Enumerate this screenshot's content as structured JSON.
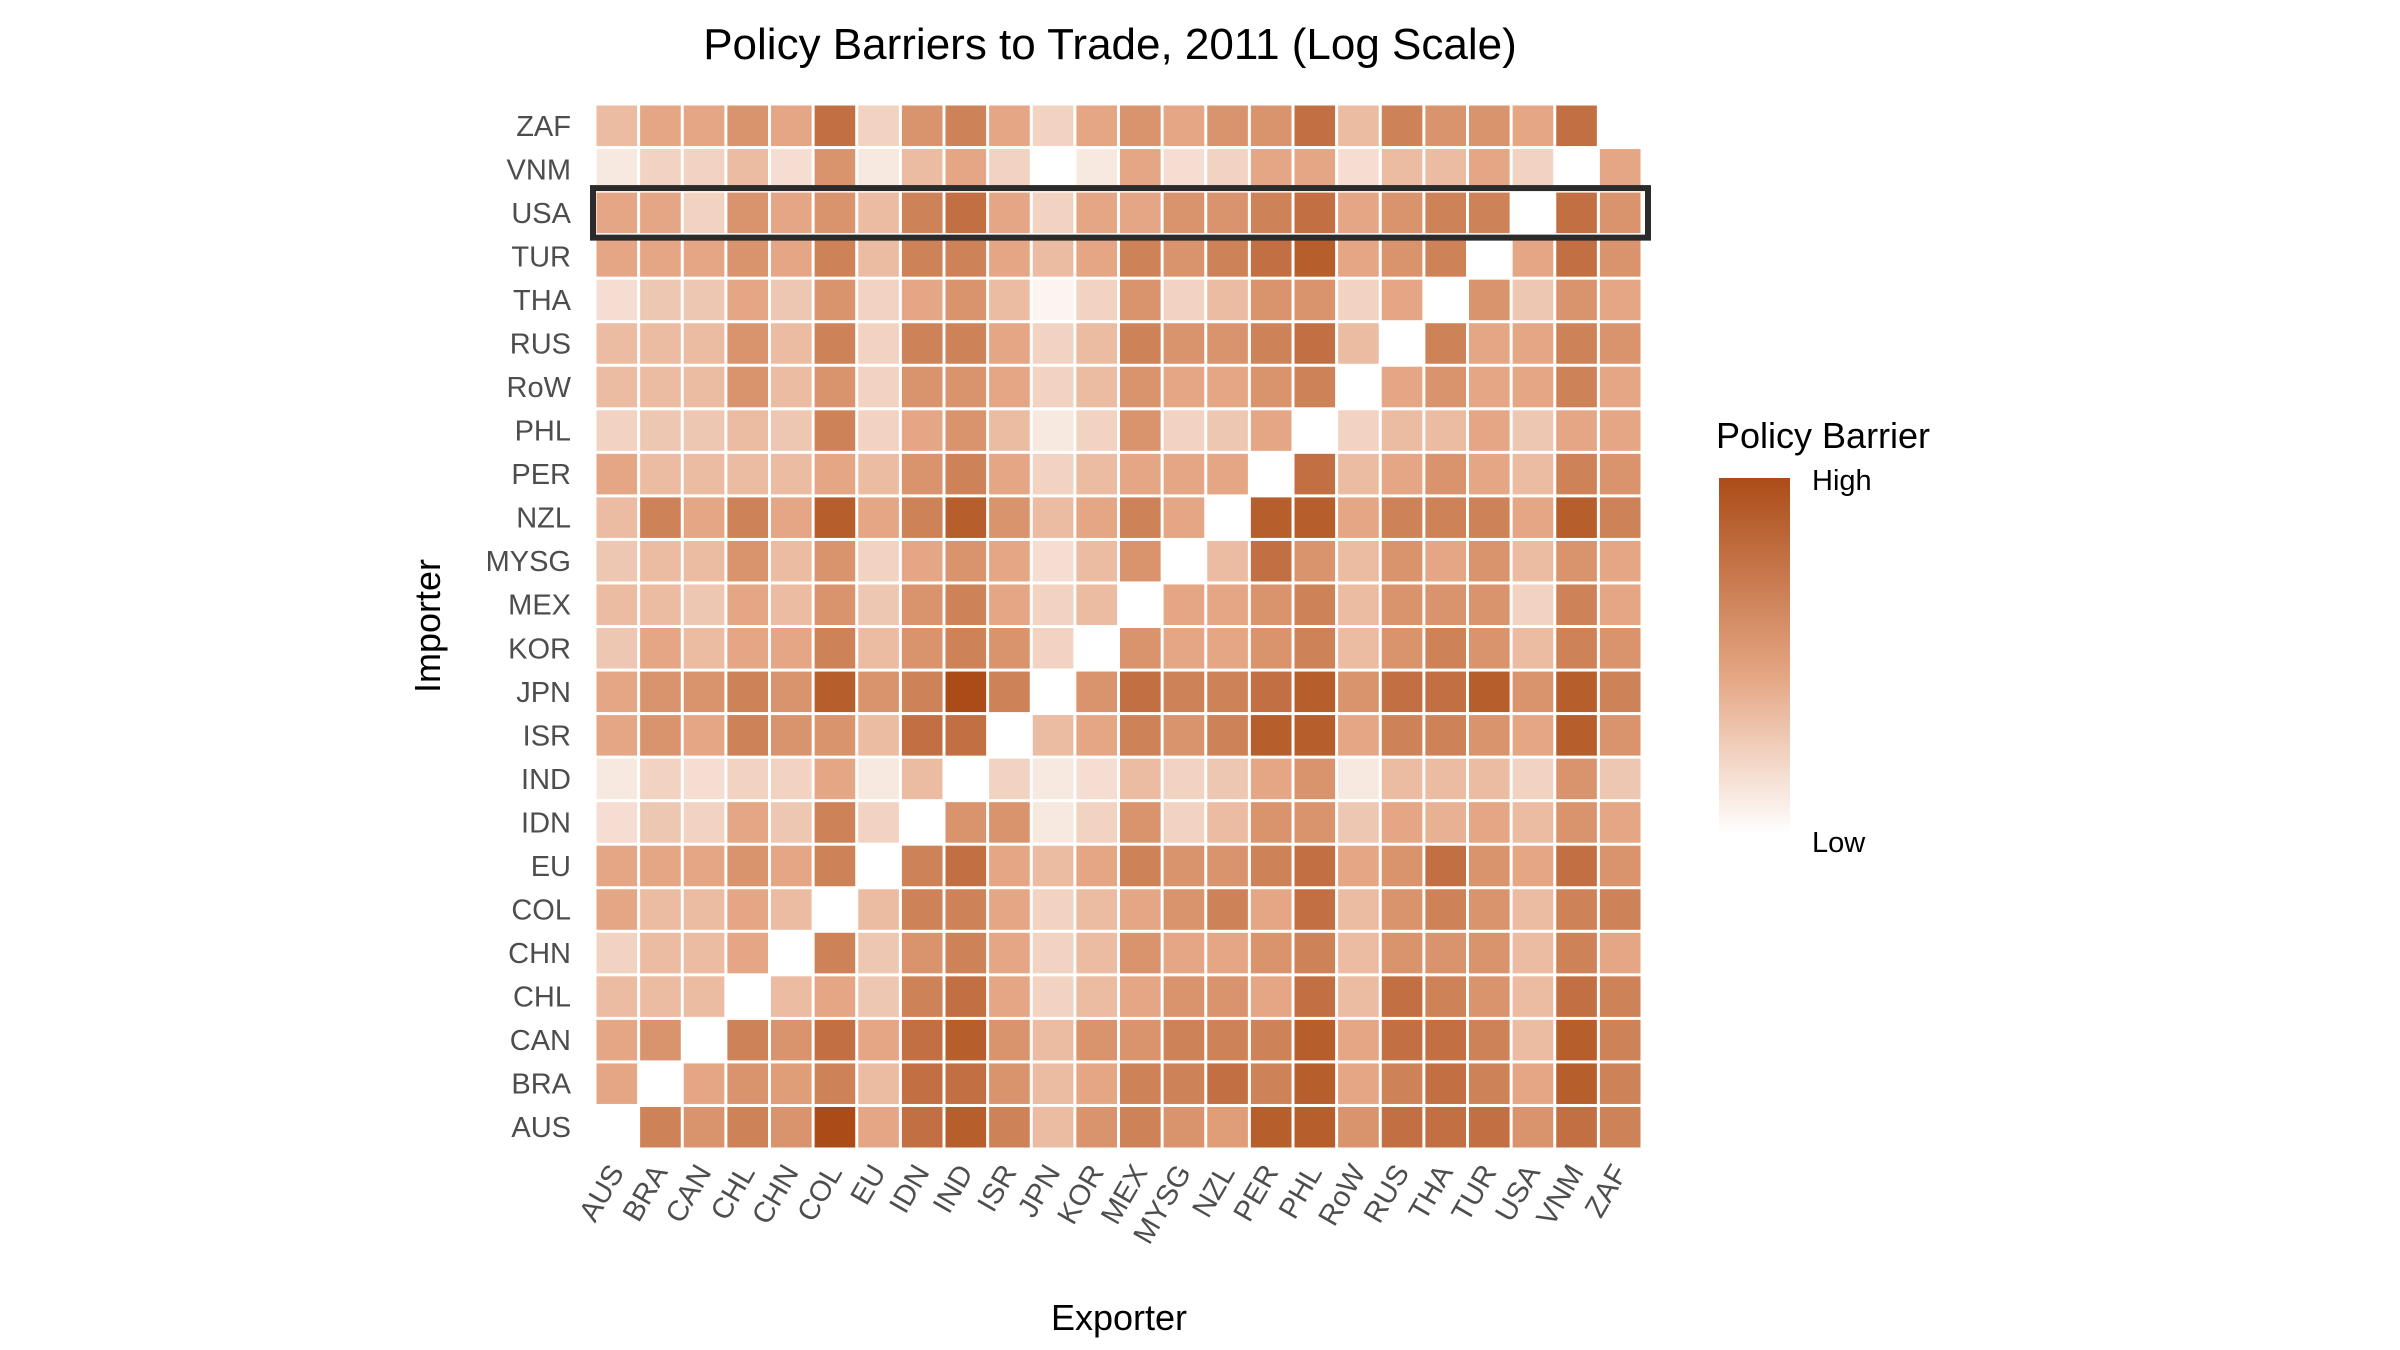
{
  "chart_data": {
    "type": "heatmap",
    "title": "Policy Barriers to Trade, 2011 (Log Scale)",
    "xlabel": "Exporter",
    "ylabel": "Importer",
    "value_scale": "relative intensity 0 (low) to 9 (high), log scale; null = no data",
    "x": [
      "AUS",
      "BRA",
      "CAN",
      "CHL",
      "CHN",
      "COL",
      "EU",
      "IDN",
      "IND",
      "ISR",
      "JPN",
      "KOR",
      "MEX",
      "MYSG",
      "NZL",
      "PER",
      "PHL",
      "RoW",
      "RUS",
      "THA",
      "TUR",
      "USA",
      "VNM",
      "ZAF"
    ],
    "y": [
      "ZAF",
      "VNM",
      "USA",
      "TUR",
      "THA",
      "RUS",
      "RoW",
      "PHL",
      "PER",
      "NZL",
      "MYSG",
      "MEX",
      "KOR",
      "JPN",
      "ISR",
      "IND",
      "IDN",
      "EU",
      "COL",
      "CHN",
      "CHL",
      "CAN",
      "BRA",
      "AUS"
    ],
    "values": [
      [
        3,
        4,
        4,
        5,
        4,
        7,
        2,
        5,
        6,
        4,
        2,
        4,
        5,
        4,
        5,
        5,
        7,
        3,
        6,
        5,
        5,
        4,
        7,
        null
      ],
      [
        1,
        2,
        2,
        3,
        1.5,
        5,
        1,
        3,
        4,
        2,
        0,
        1,
        4,
        1.5,
        2,
        4,
        4,
        1.5,
        3,
        3,
        4,
        2,
        null,
        4
      ],
      [
        4,
        4,
        2,
        5,
        4,
        5,
        3,
        6,
        7,
        4,
        2,
        4,
        4,
        5,
        5,
        6,
        7,
        4,
        5,
        6,
        6,
        null,
        7,
        5
      ],
      [
        4,
        4,
        4,
        5,
        4,
        6,
        3,
        6,
        6,
        4,
        3,
        4,
        6,
        5,
        6,
        7,
        8,
        4,
        5,
        6,
        null,
        4,
        7,
        5
      ],
      [
        1.5,
        2.5,
        2.5,
        4,
        2.5,
        5,
        2,
        4,
        5,
        3,
        0.5,
        2,
        5,
        2,
        3,
        5,
        5,
        2,
        4,
        null,
        5,
        2.5,
        5,
        4
      ],
      [
        3,
        3,
        3,
        5,
        3,
        6,
        2,
        6,
        6,
        4,
        2,
        3,
        6,
        5,
        5,
        6,
        7,
        3,
        null,
        6,
        4,
        4,
        6,
        5
      ],
      [
        3,
        3,
        3,
        5,
        3,
        5,
        2,
        5,
        5,
        4,
        2,
        3,
        5,
        4,
        4,
        5,
        6,
        null,
        4,
        5,
        4,
        4,
        6,
        4
      ],
      [
        2,
        2.5,
        2.5,
        3,
        2.5,
        6,
        2,
        4,
        5,
        3,
        1,
        2,
        5,
        2,
        2.5,
        4,
        null,
        2,
        3,
        3,
        4,
        2.5,
        4,
        4
      ],
      [
        4,
        3,
        3,
        3,
        3,
        4,
        3,
        5,
        6,
        4,
        2,
        3,
        4,
        4,
        4,
        null,
        7,
        3,
        4,
        5,
        4,
        3,
        6,
        5
      ],
      [
        3,
        6,
        4,
        6,
        4,
        8,
        4,
        6,
        8,
        5,
        3,
        4,
        6,
        4,
        null,
        8,
        8,
        4,
        6,
        6,
        6,
        4,
        8,
        6
      ],
      [
        2.5,
        3,
        3,
        5,
        3,
        5,
        2,
        4,
        5,
        4,
        1.5,
        3,
        5,
        null,
        3,
        7,
        5,
        3,
        5,
        4,
        5,
        3,
        5,
        4
      ],
      [
        3,
        3,
        2.5,
        4,
        3,
        5,
        2.5,
        5,
        6,
        4,
        2,
        3,
        null,
        4,
        4,
        5,
        6,
        3,
        5,
        5,
        5,
        2,
        6,
        4
      ],
      [
        2.5,
        4,
        3,
        4,
        4,
        6,
        3,
        5,
        6,
        5,
        2,
        null,
        5,
        4,
        4,
        5,
        6,
        3,
        5,
        6,
        5,
        3,
        6,
        5
      ],
      [
        4,
        5,
        5,
        6,
        5,
        8,
        5,
        6,
        9,
        6,
        null,
        5,
        7,
        6,
        6,
        7,
        8,
        5,
        7,
        7,
        8,
        5,
        8,
        6
      ],
      [
        4,
        5,
        4,
        6,
        5,
        5,
        3,
        7,
        7,
        null,
        3,
        4,
        6,
        5,
        6,
        8,
        8,
        4,
        6,
        6,
        5,
        4,
        8,
        5
      ],
      [
        1,
        2,
        1.5,
        2,
        2,
        4,
        1,
        3,
        null,
        2,
        1,
        1.5,
        3,
        2,
        2.5,
        4,
        5,
        1,
        3,
        3,
        3,
        2,
        5,
        2.5
      ],
      [
        1.5,
        2.5,
        2,
        4,
        2.5,
        6,
        2,
        null,
        5,
        5,
        1,
        2,
        5,
        2,
        3,
        5,
        5,
        2.5,
        4,
        3.5,
        4,
        3,
        5,
        4
      ],
      [
        4,
        4,
        4,
        5,
        4,
        6,
        null,
        6,
        7,
        4,
        3,
        4,
        6,
        5,
        5,
        6,
        7,
        4,
        5,
        7,
        5,
        4,
        7,
        5
      ],
      [
        4,
        3,
        3,
        4,
        3,
        null,
        3,
        6,
        6,
        4,
        2,
        3,
        4,
        5,
        6,
        4,
        7,
        3,
        5,
        6,
        5,
        3,
        6,
        6
      ],
      [
        2,
        3,
        3,
        4,
        null,
        6,
        2.5,
        5,
        6,
        4,
        2,
        3,
        5,
        4,
        4,
        5,
        6,
        3,
        5,
        5,
        5,
        3,
        6,
        4
      ],
      [
        3,
        3,
        3,
        null,
        3,
        4,
        2.5,
        6,
        7,
        4,
        2,
        3,
        4,
        5,
        5,
        4,
        7,
        3,
        7,
        6,
        5,
        3,
        7,
        6
      ],
      [
        4,
        5,
        null,
        6,
        5,
        7,
        4,
        7,
        8,
        5,
        3,
        5,
        5,
        6,
        6,
        6,
        8,
        4,
        7,
        7,
        6,
        3,
        8,
        6
      ],
      [
        4,
        null,
        4,
        5,
        4.5,
        6,
        3,
        7,
        7,
        5,
        3,
        4,
        6,
        6,
        7,
        6,
        8,
        4,
        6,
        7,
        6,
        4,
        8,
        6
      ],
      [
        null,
        6,
        5,
        6,
        5,
        9,
        4,
        7,
        8,
        6,
        3,
        5,
        6,
        5,
        4.5,
        8,
        8,
        5,
        7,
        7,
        7,
        5,
        7,
        6
      ]
    ],
    "highlighted_row": "USA",
    "legend": {
      "title": "Policy Barrier",
      "high_label": "High",
      "low_label": "Low",
      "placement": "right"
    },
    "colors": {
      "low": "#ffffff",
      "mid": "#e4a582",
      "high": "#ab4c18",
      "highlight": "#2b2b2b"
    }
  }
}
